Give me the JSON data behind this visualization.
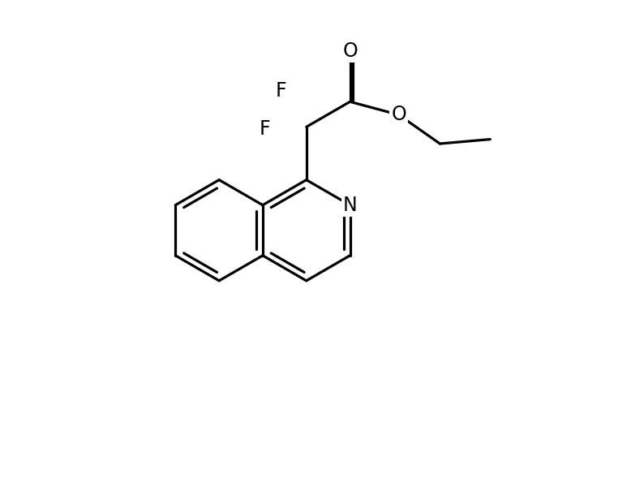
{
  "background_color": "#ffffff",
  "line_color": "#000000",
  "line_width": 2.3,
  "font_size": 17,
  "atoms": {
    "N_label": "N",
    "F1_label": "F",
    "F2_label": "F",
    "O_carbonyl_label": "O",
    "O_ester_label": "O"
  },
  "figsize": [
    7.78,
    6.0
  ],
  "dpi": 100,
  "xlim": [
    0,
    10
  ],
  "ylim": [
    0,
    10
  ]
}
